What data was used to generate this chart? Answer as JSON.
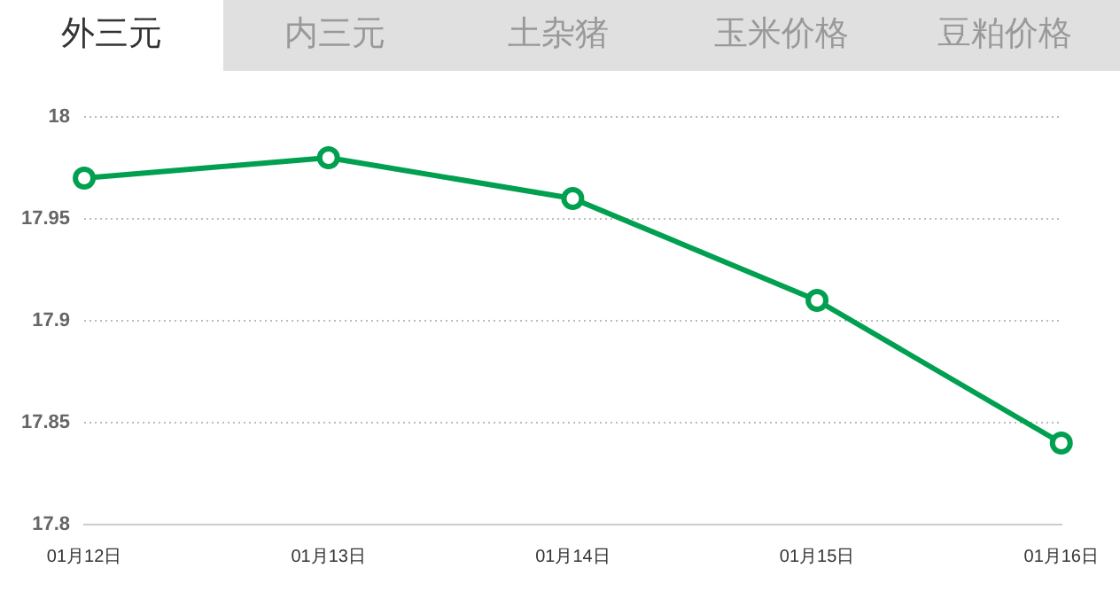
{
  "chart_data": {
    "type": "line",
    "annotations": [
      "外三元",
      "内三元",
      "土杂猪",
      "玉米价格",
      "豆粕价格"
    ],
    "categories": [
      "01月12日",
      "01月13日",
      "01月14日",
      "01月15日",
      "01月16日"
    ],
    "series": [
      {
        "color": "#00a050",
        "values": [
          17.97,
          17.98,
          17.96,
          17.91,
          17.84
        ]
      }
    ],
    "ylim": [
      17.8,
      18
    ],
    "yticks": [
      17.8,
      17.85,
      17.9,
      17.95,
      18
    ],
    "grid": "y",
    "legend": false,
    "marker": "circle",
    "line_style": "solid"
  }
}
